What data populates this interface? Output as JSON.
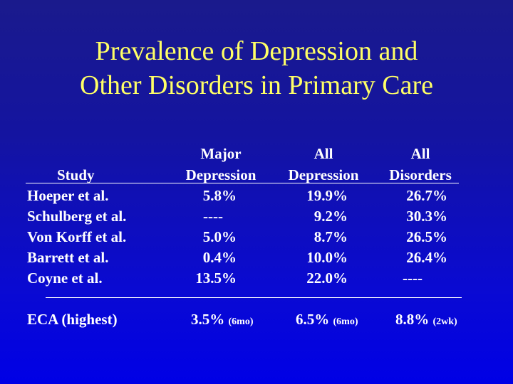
{
  "title": {
    "line1": "Prevalence of Depression and",
    "line2": "Other Disorders in Primary Care"
  },
  "headers": {
    "study": "Study",
    "major_line1": "Major",
    "major_line2": "Depression",
    "all_dep_line1": "All",
    "all_dep_line2": "Depression",
    "all_dis_line1": "All",
    "all_dis_line2": "Disorders"
  },
  "rows": [
    {
      "study": "Hoeper et al.",
      "major": "5.8%",
      "all_dep": "19.9%",
      "all_dis": "26.7%"
    },
    {
      "study": "Schulberg et al.",
      "major": "----",
      "all_dep": "9.2%",
      "all_dis": "30.3%"
    },
    {
      "study": "Von Korff et al.",
      "major": "5.0%",
      "all_dep": "8.7%",
      "all_dis": "26.5%"
    },
    {
      "study": "Barrett et al.",
      "major": "0.4%",
      "all_dep": "10.0%",
      "all_dis": "26.4%"
    },
    {
      "study": "Coyne et al.",
      "major": "13.5%",
      "all_dep": "22.0%",
      "all_dis": "----"
    }
  ],
  "eca": {
    "label": "ECA (highest)",
    "major": "3.5%",
    "major_note": "(6mo)",
    "all_dep": "6.5%",
    "all_dep_note": "(6mo)",
    "all_dis": "8.8%",
    "all_dis_note": "(2wk)"
  },
  "colors": {
    "title": "#ffff66",
    "text": "#ffffff",
    "background_top": "#1a1a8c",
    "background_bottom": "#0000e6"
  }
}
